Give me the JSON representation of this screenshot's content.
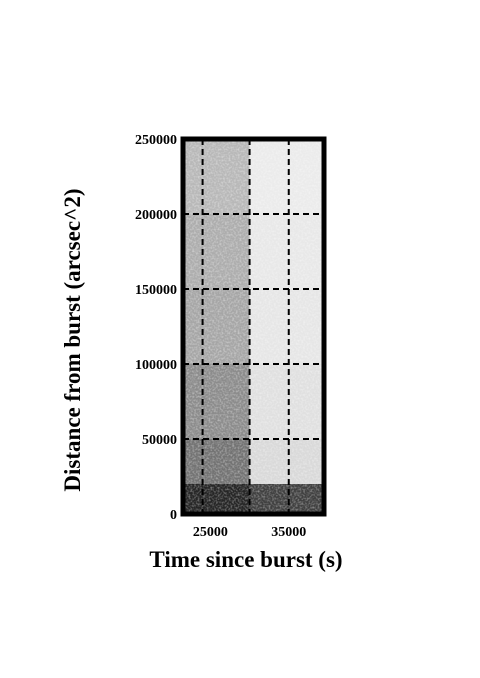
{
  "chart_data": {
    "type": "heatmap",
    "title": "",
    "xlabel": "Time since burst (s)",
    "ylabel": "Distance from burst (arcsec^2)",
    "xlim": [
      21500,
      39500
    ],
    "ylim": [
      0,
      250000
    ],
    "x_ticks": [
      25000,
      35000
    ],
    "x_tick_labels": [
      "25000",
      "35000"
    ],
    "y_ticks": [
      0,
      50000,
      100000,
      150000,
      200000,
      250000
    ],
    "y_tick_labels": [
      "0",
      "50000",
      "100000",
      "150000",
      "200000",
      "250000"
    ],
    "x_gridlines": [
      24000,
      30000,
      35000
    ],
    "y_gridlines": [
      50000,
      100000,
      150000,
      200000,
      250000
    ],
    "grid": true,
    "grid_style": "dashed",
    "colormap": "grayscale (white = low, black = high)",
    "x_bins": [
      21500,
      30000,
      39500
    ],
    "y_bins": [
      0,
      20000,
      50000,
      100000,
      150000,
      200000,
      250000
    ],
    "intensity": [
      [
        0.85,
        0.75
      ],
      [
        0.55,
        0.15
      ],
      [
        0.45,
        0.12
      ],
      [
        0.35,
        0.1
      ],
      [
        0.32,
        0.09
      ],
      [
        0.28,
        0.08
      ]
    ]
  }
}
